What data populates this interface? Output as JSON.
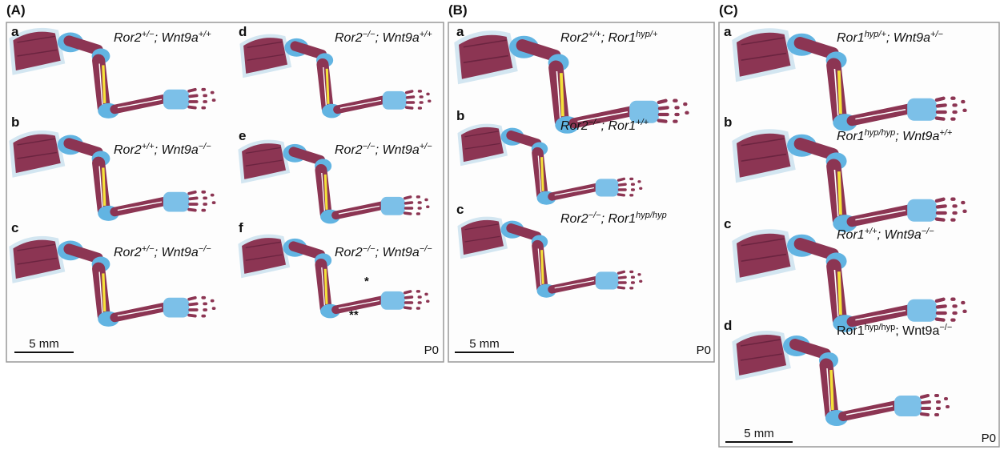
{
  "panels": [
    {
      "label": "(A)",
      "scale_bar": "5 mm",
      "stage": "P0",
      "items": [
        {
          "letter": "a",
          "genotype": [
            "Ror2",
            "+/−",
            "; Wnt9a",
            "+/+"
          ]
        },
        {
          "letter": "d",
          "genotype": [
            "Ror2",
            "−/−",
            "; Wnt9a",
            "+/+"
          ]
        },
        {
          "letter": "b",
          "genotype": [
            "Ror2",
            "+/+",
            "; Wnt9a",
            "−/−"
          ]
        },
        {
          "letter": "e",
          "genotype": [
            "Ror2",
            "−/−",
            "; Wnt9a",
            "+/−"
          ]
        },
        {
          "letter": "c",
          "genotype": [
            "Ror2",
            "+/−",
            "; Wnt9a",
            "−/−"
          ]
        },
        {
          "letter": "f",
          "genotype": [
            "Ror2",
            "−/−",
            "; Wnt9a",
            "−/−"
          ],
          "marks": [
            "*",
            "**"
          ]
        }
      ]
    },
    {
      "label": "(B)",
      "scale_bar": "5 mm",
      "stage": "P0",
      "items": [
        {
          "letter": "a",
          "genotype": [
            "Ror2",
            "+/+",
            "; Ror1",
            "hyp/+"
          ]
        },
        {
          "letter": "b",
          "genotype": [
            "Ror2",
            "−/−",
            "; Ror1",
            "+/+"
          ]
        },
        {
          "letter": "c",
          "genotype": [
            "Ror2",
            "−/−",
            "; Ror1",
            "hyp/hyp"
          ]
        }
      ]
    },
    {
      "label": "(C)",
      "scale_bar": "5 mm",
      "stage": "P0",
      "items": [
        {
          "letter": "a",
          "genotype": [
            "Ror1",
            "hyp/+",
            "; Wnt9a",
            "+/−"
          ]
        },
        {
          "letter": "b",
          "genotype": [
            "Ror1",
            "hyp/hyp",
            "; Wnt9a",
            "+/+"
          ]
        },
        {
          "letter": "c",
          "genotype": [
            "Ror1",
            "+/+",
            "; Wnt9a",
            "−/−"
          ]
        },
        {
          "letter": "d",
          "genotype": [
            "Ror1",
            "hyp/hyp",
            "; Wnt9a",
            "−/−"
          ],
          "italic": false
        }
      ]
    }
  ]
}
